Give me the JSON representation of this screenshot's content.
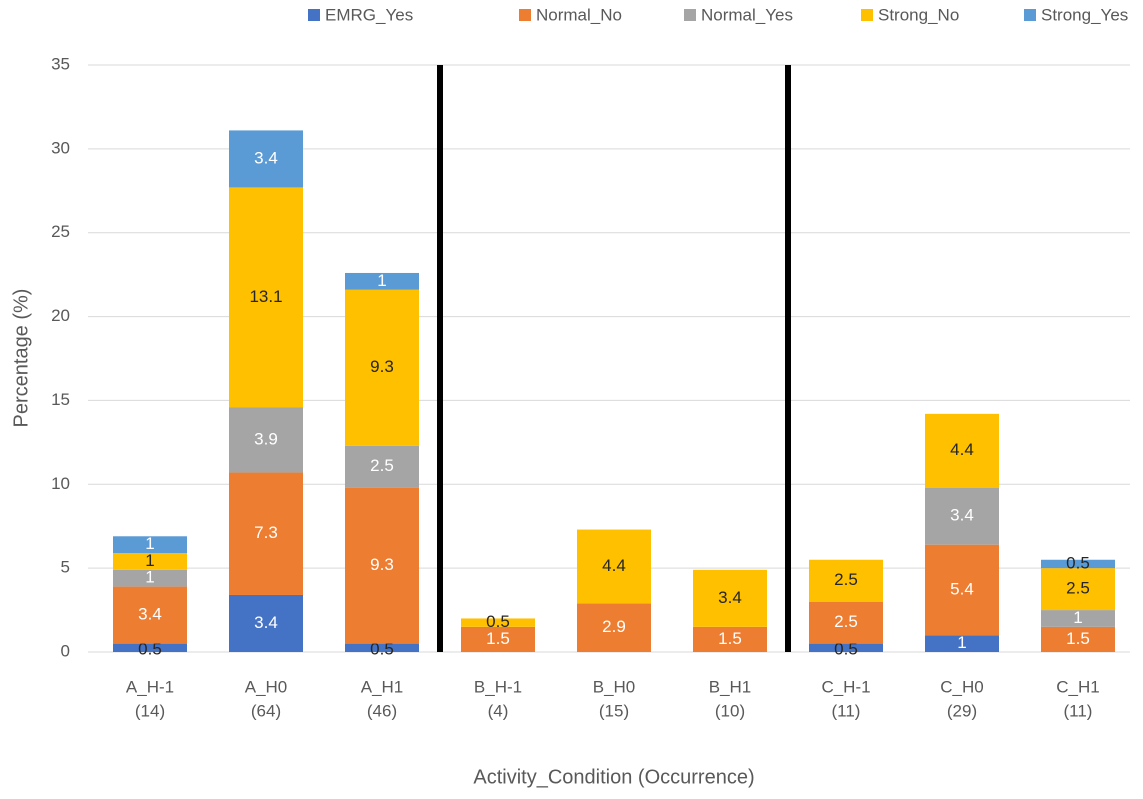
{
  "chart_data": {
    "type": "stacked_bar",
    "x_label": "Activity_Condition (Occurrence)",
    "y_label": "Percentage (%)",
    "categories": [
      [
        "A_H-1",
        "(14)"
      ],
      [
        "A_H0",
        "(64)"
      ],
      [
        "A_H1",
        "(46)"
      ],
      [
        "B_H-1",
        "(4)"
      ],
      [
        "B_H0",
        "(15)"
      ],
      [
        "B_H1",
        "(10)"
      ],
      [
        "C_H-1",
        "(11)"
      ],
      [
        "C_H0",
        "(29)"
      ],
      [
        "C_H1",
        "(11)"
      ]
    ],
    "series": [
      {
        "name": "EMRG_Yes",
        "color": "#4472c4",
        "values": [
          0.5,
          3.4,
          0.5,
          null,
          null,
          null,
          0.5,
          1,
          null
        ]
      },
      {
        "name": "Normal_No",
        "color": "#ed7d31",
        "values": [
          3.4,
          7.3,
          9.3,
          1.5,
          2.9,
          1.5,
          2.5,
          5.4,
          1.5
        ]
      },
      {
        "name": "Normal_Yes",
        "color": "#a5a5a5",
        "values": [
          1,
          3.9,
          2.5,
          null,
          null,
          null,
          null,
          3.4,
          1
        ]
      },
      {
        "name": "Strong_No",
        "color": "#ffc000",
        "values": [
          1,
          13.1,
          9.3,
          0.5,
          4.4,
          3.4,
          2.5,
          4.4,
          2.5
        ]
      },
      {
        "name": "Strong_Yes",
        "color": "#5b9bd5",
        "values": [
          1,
          3.4,
          1,
          null,
          null,
          null,
          null,
          null,
          0.5
        ]
      }
    ],
    "ylim": [
      0,
      35
    ],
    "yticks": [
      0,
      5,
      10,
      15,
      20,
      25,
      30,
      35
    ],
    "grid": true,
    "legend": "top"
  }
}
